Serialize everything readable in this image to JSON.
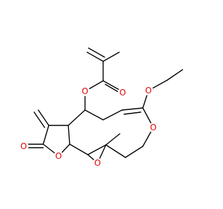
{
  "atom_labels": [
    "O",
    "O",
    "O",
    "O",
    "O",
    "O",
    "O"
  ]
}
